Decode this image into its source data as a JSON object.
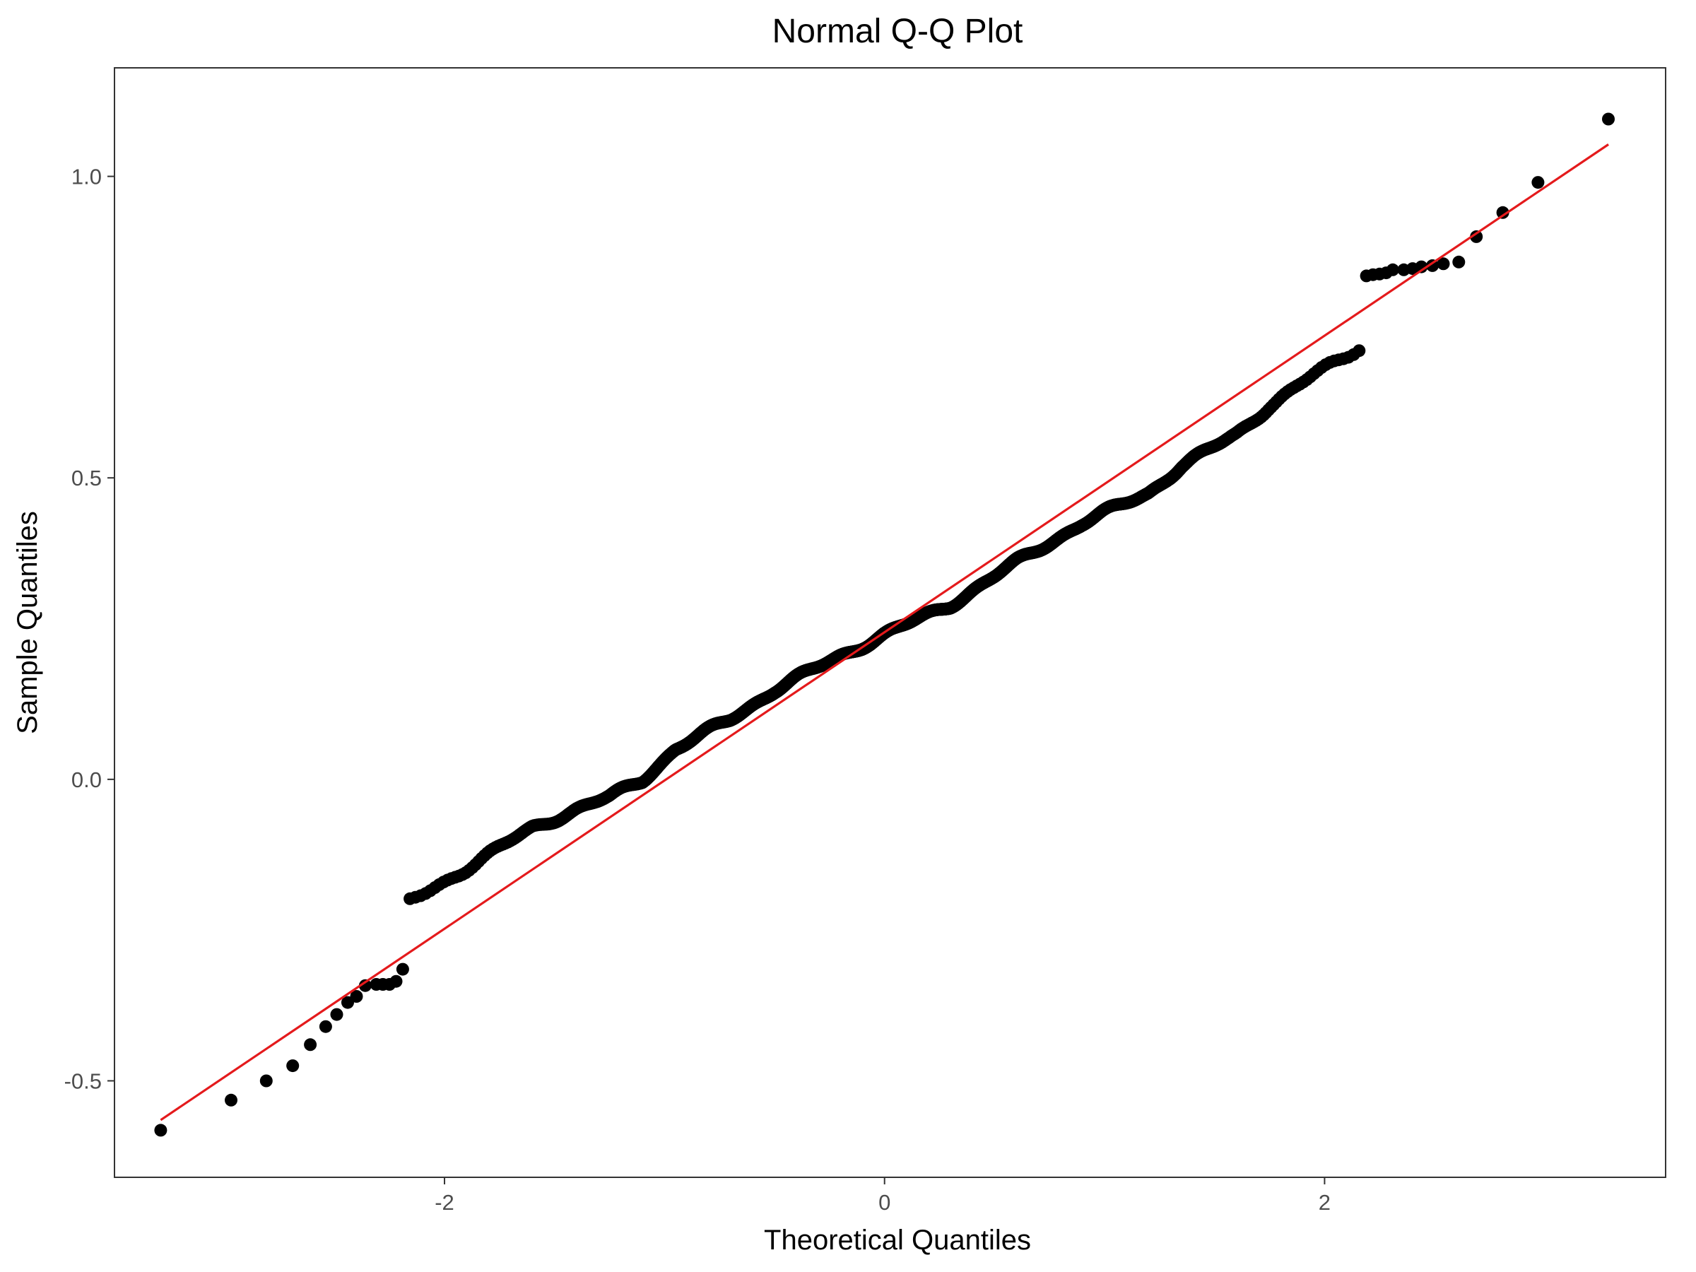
{
  "chart_data": {
    "type": "scatter",
    "title": "Normal Q-Q Plot",
    "xlabel": "Theoretical Quantiles",
    "ylabel": "Sample Quantiles",
    "xlim": [
      -3.5,
      3.55
    ],
    "ylim": [
      -0.66,
      1.18
    ],
    "x_ticks": [
      -2,
      0,
      2
    ],
    "x_tick_labels": [
      "-2",
      "0",
      "2"
    ],
    "y_ticks": [
      -0.5,
      0.0,
      0.5,
      1.0
    ],
    "y_tick_labels": [
      "-0.5",
      "0.0",
      "0.5",
      "1.0"
    ],
    "grid": false,
    "legend": "none",
    "n_points": 1000,
    "sample_mean": 0.24,
    "sample_sd": 0.2,
    "reference_line": {
      "x": [
        -3.29,
        3.29
      ],
      "y": [
        -0.565,
        1.053
      ],
      "color": "#e41a1c"
    },
    "point_color": "#000000",
    "tail_points": [
      [
        -3.29,
        -0.582
      ],
      [
        -2.97,
        -0.532
      ],
      [
        -2.81,
        -0.5
      ],
      [
        -2.69,
        -0.475
      ],
      [
        -2.61,
        -0.44
      ],
      [
        -2.54,
        -0.41
      ],
      [
        -2.49,
        -0.39
      ],
      [
        -2.44,
        -0.37
      ],
      [
        -2.4,
        -0.36
      ],
      [
        -2.36,
        -0.342
      ],
      [
        -2.31,
        -0.34
      ],
      [
        -2.28,
        -0.34
      ],
      [
        -2.25,
        -0.34
      ],
      [
        -2.22,
        -0.335
      ],
      [
        -2.19,
        -0.315
      ],
      [
        2.19,
        0.835
      ],
      [
        2.22,
        0.837
      ],
      [
        2.25,
        0.838
      ],
      [
        2.28,
        0.84
      ],
      [
        2.31,
        0.845
      ],
      [
        2.36,
        0.845
      ],
      [
        2.4,
        0.847
      ],
      [
        2.44,
        0.85
      ],
      [
        2.49,
        0.852
      ],
      [
        2.54,
        0.855
      ],
      [
        2.61,
        0.858
      ],
      [
        2.69,
        0.9
      ],
      [
        2.81,
        0.94
      ],
      [
        2.97,
        0.99
      ],
      [
        3.29,
        1.095
      ]
    ]
  }
}
